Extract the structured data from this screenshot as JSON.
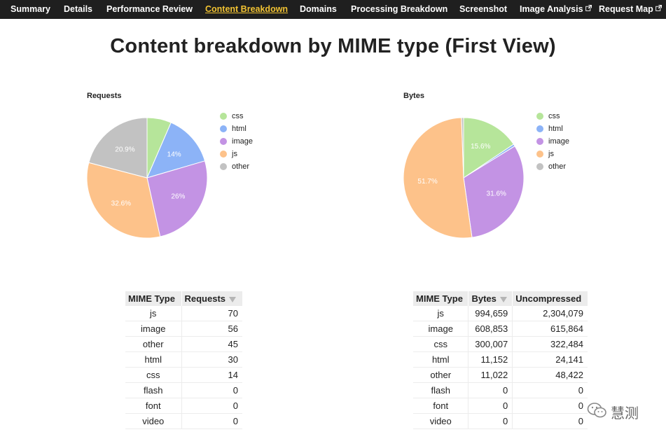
{
  "nav": {
    "tabs": [
      {
        "label": "Summary"
      },
      {
        "label": "Details"
      },
      {
        "label": "Performance Review"
      },
      {
        "label": "Content Breakdown"
      },
      {
        "label": "Domains"
      },
      {
        "label": "Processing Breakdown"
      },
      {
        "label": "Screenshot"
      },
      {
        "label": "Image Analysis"
      },
      {
        "label": "Request Map"
      }
    ],
    "active_tab": "Content Breakdown",
    "active_color": "#f1c232",
    "external_link_tabs": [
      "Image Analysis",
      "Request Map"
    ]
  },
  "page_title": "Content breakdown by MIME type (First View)",
  "colors": {
    "css": "#b6e59a",
    "html": "#8cb3f7",
    "image": "#c393e4",
    "js": "#fdc28a",
    "other": "#c2c2c2",
    "flash": "#e6e6e6",
    "font": "#e6e6e6",
    "video": "#e6e6e6"
  },
  "chart_data": [
    {
      "type": "pie",
      "title": "Requests",
      "legend": [
        "css",
        "html",
        "image",
        "js",
        "other"
      ],
      "legend_placement": "right",
      "slices": [
        {
          "label": "css",
          "value": 14,
          "pct_label": ""
        },
        {
          "label": "html",
          "value": 30,
          "pct_label": "14%"
        },
        {
          "label": "image",
          "value": 56,
          "pct_label": "26%"
        },
        {
          "label": "js",
          "value": 70,
          "pct_label": "32.6%"
        },
        {
          "label": "other",
          "value": 45,
          "pct_label": "20.9%"
        }
      ]
    },
    {
      "type": "pie",
      "title": "Bytes",
      "legend": [
        "css",
        "html",
        "image",
        "js",
        "other"
      ],
      "legend_placement": "right",
      "slices": [
        {
          "label": "css",
          "value": 300007,
          "pct_label": "15.6%"
        },
        {
          "label": "html",
          "value": 11152,
          "pct_label": ""
        },
        {
          "label": "image",
          "value": 608853,
          "pct_label": "31.6%"
        },
        {
          "label": "js",
          "value": 994659,
          "pct_label": "51.7%"
        },
        {
          "label": "other",
          "value": 11022,
          "pct_label": ""
        }
      ]
    },
    {
      "type": "table",
      "columns": [
        "MIME Type",
        "Requests"
      ],
      "sorted_column": "Requests",
      "rows": [
        [
          "js",
          "70"
        ],
        [
          "image",
          "56"
        ],
        [
          "other",
          "45"
        ],
        [
          "html",
          "30"
        ],
        [
          "css",
          "14"
        ],
        [
          "flash",
          "0"
        ],
        [
          "font",
          "0"
        ],
        [
          "video",
          "0"
        ]
      ]
    },
    {
      "type": "table",
      "columns": [
        "MIME Type",
        "Bytes",
        "Uncompressed"
      ],
      "sorted_column": "Bytes",
      "rows": [
        [
          "js",
          "994,659",
          "2,304,079"
        ],
        [
          "image",
          "608,853",
          "615,864"
        ],
        [
          "css",
          "300,007",
          "322,484"
        ],
        [
          "html",
          "11,152",
          "24,141"
        ],
        [
          "other",
          "11,022",
          "48,422"
        ],
        [
          "flash",
          "0",
          "0"
        ],
        [
          "font",
          "0",
          "0"
        ],
        [
          "video",
          "0",
          "0"
        ]
      ]
    }
  ],
  "watermark": {
    "text": "慧测",
    "icon": "wechat-icon"
  }
}
